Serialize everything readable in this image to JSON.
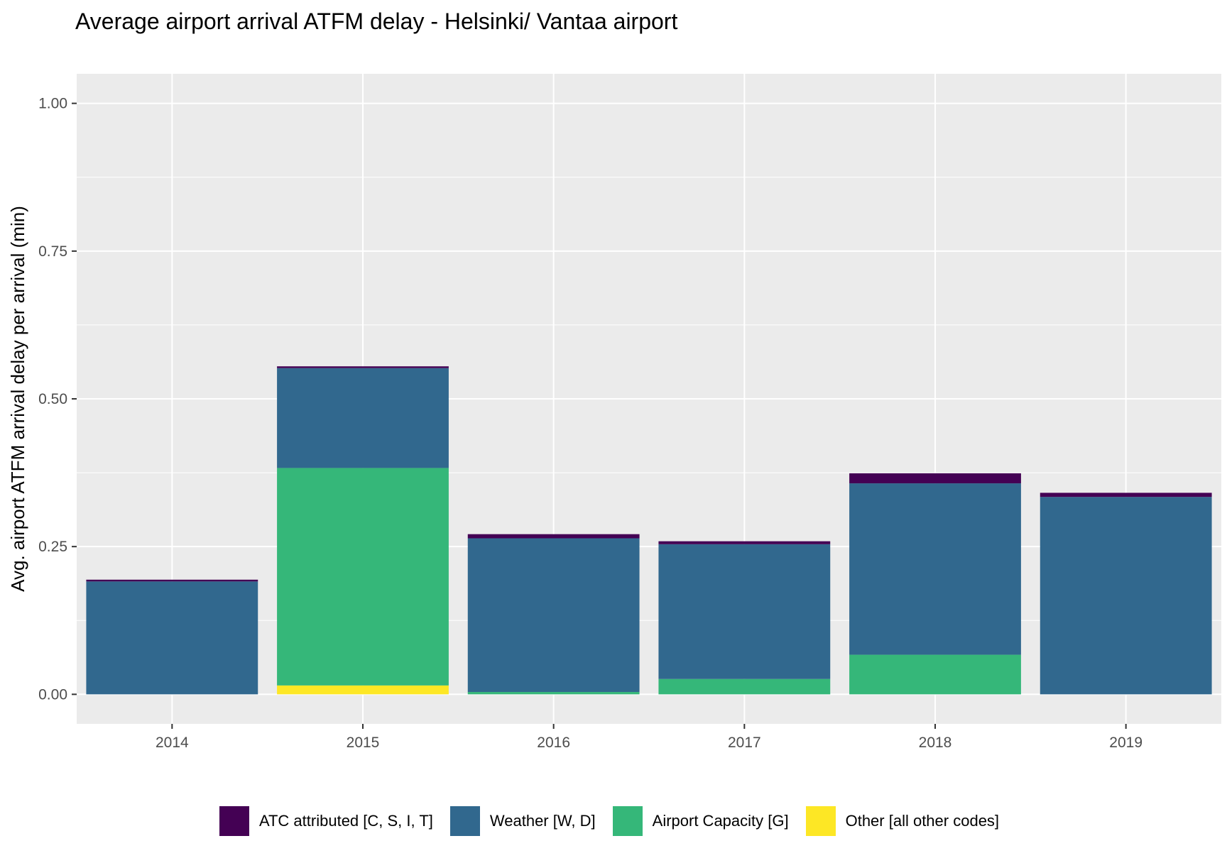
{
  "chart_data": {
    "type": "bar",
    "stacked": true,
    "title": "Average airport arrival ATFM delay - Helsinki/ Vantaa airport",
    "xlabel": "",
    "ylabel": "Avg. airport ATFM arrival delay per arrival (min)",
    "categories": [
      "2014",
      "2015",
      "2016",
      "2017",
      "2018",
      "2019"
    ],
    "ylim": [
      -0.05,
      1.05
    ],
    "y_ticks": [
      0.0,
      0.25,
      0.5,
      0.75,
      1.0
    ],
    "y_tick_labels": [
      "0.00",
      "0.25",
      "0.50",
      "0.75",
      "1.00"
    ],
    "grid": true,
    "legend_position": "bottom",
    "series": [
      {
        "name": "Other [all other codes]",
        "color": "#FDE725",
        "values": [
          0.0,
          0.015,
          0.0,
          0.0,
          0.0,
          0.0
        ]
      },
      {
        "name": "Airport Capacity [G]",
        "color": "#35B779",
        "values": [
          0.0,
          0.368,
          0.004,
          0.026,
          0.067,
          0.0
        ]
      },
      {
        "name": "Weather [W, D]",
        "color": "#31688E",
        "values": [
          0.191,
          0.169,
          0.26,
          0.228,
          0.29,
          0.334
        ]
      },
      {
        "name": "ATC attributed [C, S, I, T]",
        "color": "#440154",
        "values": [
          0.003,
          0.003,
          0.007,
          0.005,
          0.017,
          0.007
        ]
      }
    ],
    "legend_order": [
      "ATC attributed [C, S, I, T]",
      "Weather [W, D]",
      "Airport Capacity [G]",
      "Other [all other codes]"
    ]
  },
  "colors": {
    "panel_background": "#EBEBEB",
    "grid_major": "#FFFFFF",
    "tick_text": "#4D4D4D"
  }
}
